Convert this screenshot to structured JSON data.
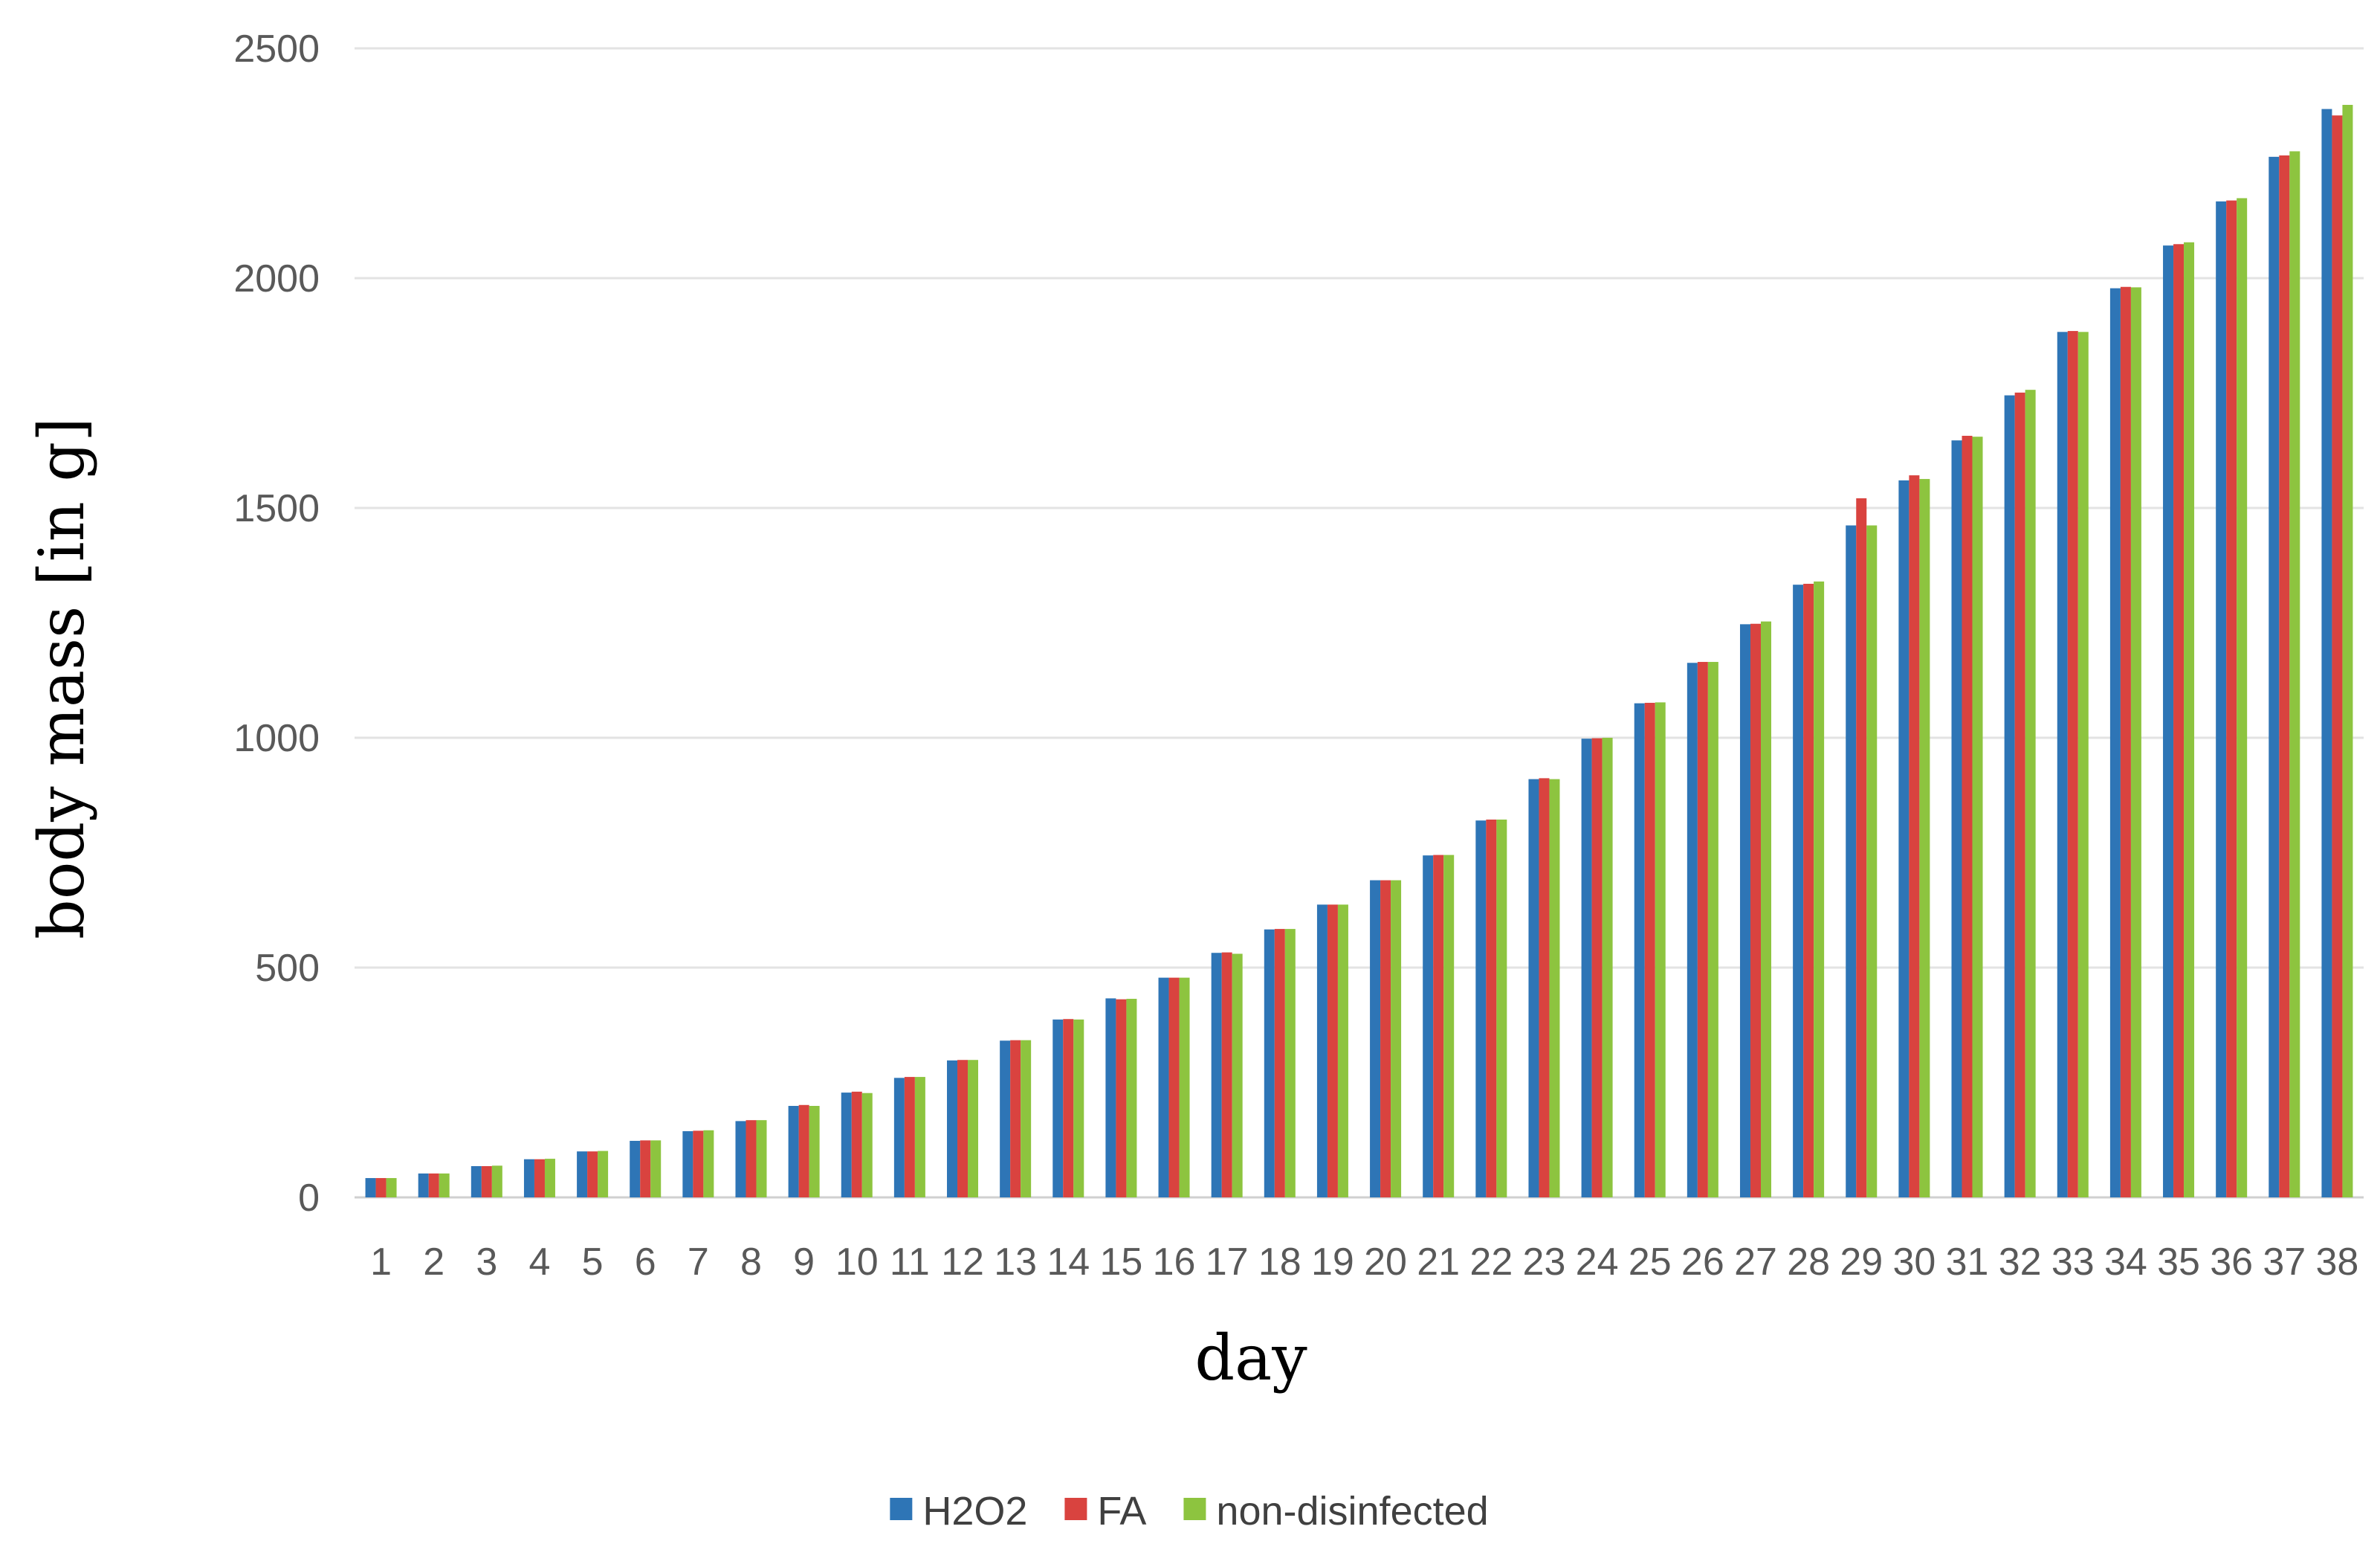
{
  "chart_data": {
    "type": "bar",
    "title": "",
    "xlabel": "day",
    "ylabel": "body mass [in g]",
    "ylim": [
      0,
      2500
    ],
    "yticks": [
      0,
      500,
      1000,
      1500,
      2000,
      2500
    ],
    "grid": true,
    "legend_position": "bottom-center",
    "categories": [
      "1",
      "2",
      "3",
      "4",
      "5",
      "6",
      "7",
      "8",
      "9",
      "10",
      "11",
      "12",
      "13",
      "14",
      "15",
      "16",
      "17",
      "18",
      "19",
      "20",
      "21",
      "22",
      "23",
      "24",
      "25",
      "26",
      "27",
      "28",
      "29",
      "30",
      "31",
      "32",
      "33",
      "34",
      "35",
      "36",
      "37",
      "38"
    ],
    "series": [
      {
        "name": "H2O2",
        "color": "#2e75b6",
        "values": [
          42,
          52,
          68,
          83,
          100,
          123,
          144,
          166,
          199,
          228,
          260,
          298,
          341,
          387,
          433,
          478,
          532,
          583,
          637,
          690,
          744,
          820,
          910,
          998,
          1075,
          1163,
          1247,
          1333,
          1462,
          1560,
          1647,
          1745,
          1883,
          1978,
          2071,
          2167,
          2264,
          2368
        ]
      },
      {
        "name": "FA",
        "color": "#d9433f",
        "values": [
          42,
          52,
          68,
          83,
          100,
          124,
          145,
          168,
          201,
          230,
          262,
          299,
          342,
          388,
          431,
          478,
          533,
          584,
          637,
          690,
          745,
          822,
          912,
          999,
          1076,
          1165,
          1248,
          1335,
          1521,
          1571,
          1657,
          1751,
          1885,
          1981,
          2074,
          2169,
          2267,
          2354
        ]
      },
      {
        "name": "non-disinfected",
        "color": "#8dc43f",
        "values": [
          42,
          52,
          69,
          84,
          101,
          124,
          146,
          168,
          199,
          227,
          262,
          299,
          342,
          387,
          432,
          478,
          530,
          584,
          637,
          690,
          745,
          822,
          910,
          1000,
          1077,
          1165,
          1253,
          1340,
          1462,
          1563,
          1655,
          1757,
          1883,
          1980,
          2078,
          2174,
          2276,
          2377
        ]
      }
    ]
  }
}
